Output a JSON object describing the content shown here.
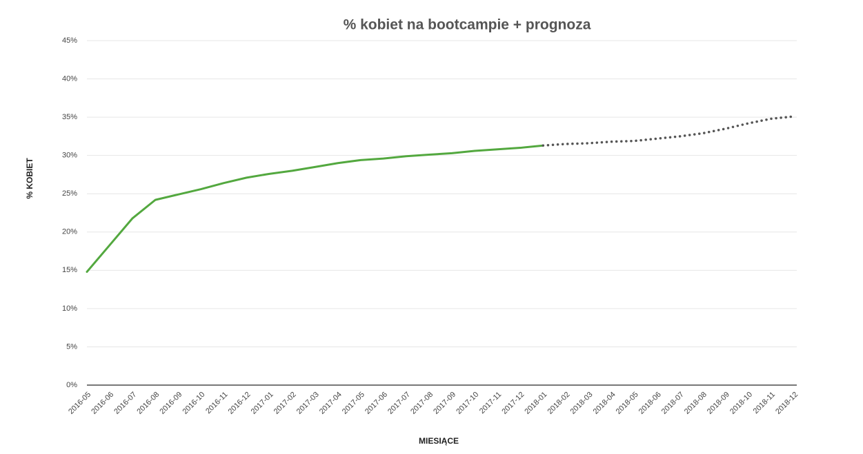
{
  "chart_data": {
    "type": "line",
    "title": "% kobiet na bootcampie + prognoza",
    "y_label": "% KOBIET",
    "x_label": "MIESIĄCE",
    "categories": [
      "2016-05",
      "2016-06",
      "2016-07",
      "2016-08",
      "2016-09",
      "2016-10",
      "2016-11",
      "2016-12",
      "2017-01",
      "2017-02",
      "2017-03",
      "2017-04",
      "2017-05",
      "2017-06",
      "2017-07",
      "2017-08",
      "2017-09",
      "2017-10",
      "2017-11",
      "2017-12",
      "2018-01",
      "2018-02",
      "2018-03",
      "2018-04",
      "2018-05",
      "2018-06",
      "2018-07",
      "2018-08",
      "2018-09",
      "2018-10",
      "2018-11",
      "2018-12"
    ],
    "series": [
      {
        "color": "#53a83f",
        "dash": "solid",
        "values": [
          14.8,
          18.3,
          21.8,
          24.2,
          24.9,
          25.6,
          26.4,
          27.1,
          27.6,
          28.0,
          28.5,
          29.0,
          29.4,
          29.6,
          29.9,
          30.1,
          30.3,
          30.6,
          30.8,
          31.0,
          31.3,
          null,
          null,
          null,
          null,
          null,
          null,
          null,
          null,
          null,
          null,
          null
        ]
      },
      {
        "color": "#555555",
        "dash": "dotted",
        "values": [
          null,
          null,
          null,
          null,
          null,
          null,
          null,
          null,
          null,
          null,
          null,
          null,
          null,
          null,
          null,
          null,
          null,
          null,
          null,
          null,
          31.3,
          31.5,
          31.6,
          31.8,
          31.9,
          32.2,
          32.5,
          32.9,
          33.5,
          34.2,
          34.8,
          35.1
        ]
      }
    ],
    "ylim": [
      0,
      45
    ],
    "yticks": [
      {
        "value": 0,
        "label": "0%"
      },
      {
        "value": 5,
        "label": "5%"
      },
      {
        "value": 10,
        "label": "10%"
      },
      {
        "value": 15,
        "label": "15%"
      },
      {
        "value": 20,
        "label": "20%"
      },
      {
        "value": 25,
        "label": "25%"
      },
      {
        "value": 30,
        "label": "30%"
      },
      {
        "value": 35,
        "label": "35%"
      },
      {
        "value": 40,
        "label": "40%"
      },
      {
        "value": 45,
        "label": "45%"
      }
    ],
    "grid": true
  }
}
